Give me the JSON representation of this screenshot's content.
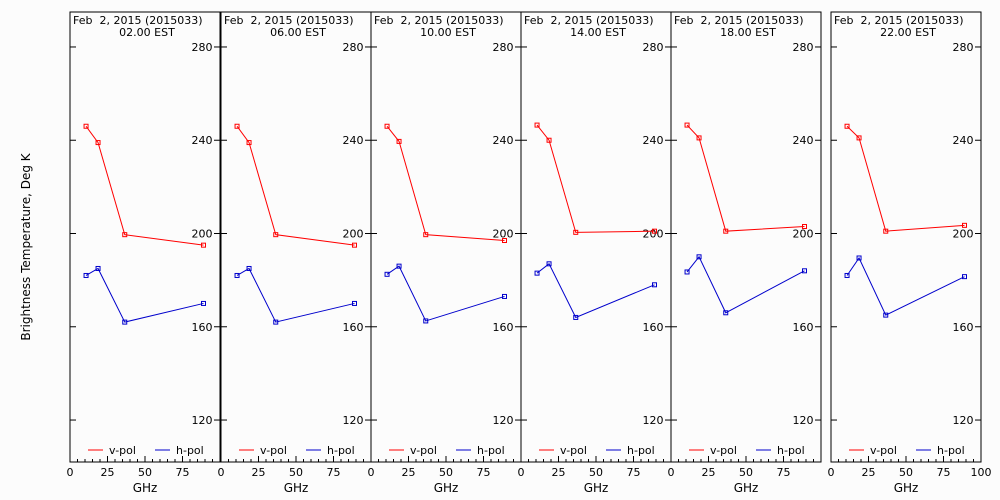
{
  "chart_data": {
    "type": "line",
    "ylabel": "Brightness Temperature, Deg K",
    "xlabel": "GHz",
    "xlim": [
      0,
      100
    ],
    "ylim": [
      102,
      295
    ],
    "yticks": [
      120,
      160,
      200,
      240,
      280
    ],
    "xticks": [
      0,
      25,
      50,
      75,
      100
    ],
    "x": [
      10.7,
      18.7,
      36.5,
      89.0
    ],
    "colors": {
      "v_pol": "#ff0000",
      "h_pol": "#0000cc"
    },
    "legend": {
      "v_label": "v-pol",
      "h_label": "h-pol",
      "placement": "bottom"
    },
    "panels": [
      {
        "date": "Feb  2, 2015 (2015033)",
        "time": "02.00 EST",
        "series": [
          {
            "name": "v-pol",
            "values": [
              246,
              239,
              199.5,
              195
            ]
          },
          {
            "name": "h-pol",
            "values": [
              182,
              185,
              162,
              170
            ]
          }
        ]
      },
      {
        "date": "Feb  2, 2015 (2015033)",
        "time": "06.00 EST",
        "series": [
          {
            "name": "v-pol",
            "values": [
              246,
              239,
              199.5,
              195
            ]
          },
          {
            "name": "h-pol",
            "values": [
              182,
              185,
              162,
              170
            ]
          }
        ]
      },
      {
        "date": "Feb  2, 2015 (2015033)",
        "time": "10.00 EST",
        "series": [
          {
            "name": "v-pol",
            "values": [
              246,
              239.5,
              199.5,
              197
            ]
          },
          {
            "name": "h-pol",
            "values": [
              182.5,
              186,
              162.5,
              173
            ]
          }
        ]
      },
      {
        "date": "Feb  2, 2015 (2015033)",
        "time": "14.00 EST",
        "series": [
          {
            "name": "v-pol",
            "values": [
              246.5,
              240,
              200.5,
              201
            ]
          },
          {
            "name": "h-pol",
            "values": [
              183,
              187,
              164,
              178
            ]
          }
        ]
      },
      {
        "date": "Feb  2, 2015 (2015033)",
        "time": "18.00 EST",
        "series": [
          {
            "name": "v-pol",
            "values": [
              246.5,
              241,
              201,
              203
            ]
          },
          {
            "name": "h-pol",
            "values": [
              183.5,
              190,
              166,
              184
            ]
          }
        ]
      },
      {
        "date": "Feb  2, 2015 (2015033)",
        "time": "22.00 EST",
        "series": [
          {
            "name": "v-pol",
            "values": [
              246,
              241,
              201,
              203.5
            ]
          },
          {
            "name": "h-pol",
            "values": [
              182,
              189.5,
              165,
              181.5
            ]
          }
        ]
      }
    ]
  }
}
